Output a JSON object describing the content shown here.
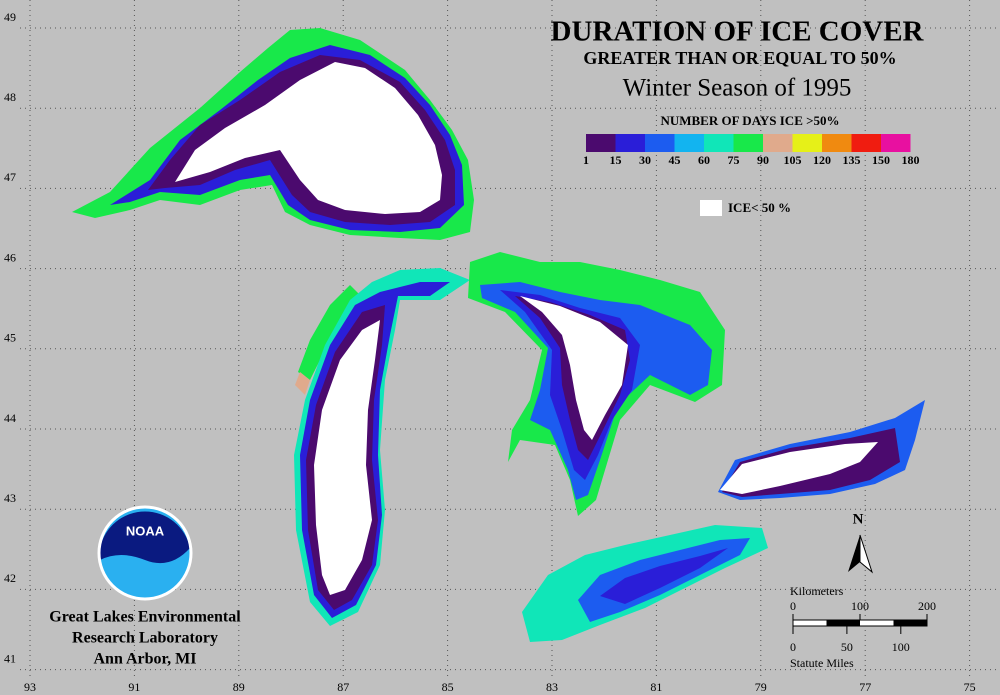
{
  "title": "DURATION OF ICE COVER",
  "subtitle": "GREATER THAN OR EQUAL TO 50%",
  "season": "Winter Season of 1995",
  "legend": {
    "title": "NUMBER OF DAYS ICE >50%",
    "breaks": [
      1,
      15,
      30,
      45,
      60,
      75,
      90,
      105,
      120,
      135,
      150,
      180
    ],
    "colors": [
      "#4b0a6e",
      "#2a1ed8",
      "#1c5cf0",
      "#12b4f0",
      "#10e6b8",
      "#18e84a",
      "#e0aa8c",
      "#e6f018",
      "#f08a10",
      "#f01c10",
      "#e810a0"
    ]
  },
  "ice_label": "ICE< 50 %",
  "grid": {
    "lon_labels": [
      93,
      91,
      89,
      87,
      85,
      83,
      81,
      79,
      77,
      75
    ],
    "lat_labels": [
      49,
      48,
      47,
      46,
      45,
      44,
      43,
      42,
      41
    ]
  },
  "north": "N",
  "scale": {
    "km_label": "Kilometers",
    "km_ticks": [
      0,
      100,
      200
    ],
    "mi_label": "Statute Miles",
    "mi_ticks": [
      0,
      50,
      100
    ]
  },
  "logo": "NOAA",
  "credit": [
    "Great Lakes Environmental",
    "Research Laboratory",
    "Ann Arbor, MI"
  ]
}
